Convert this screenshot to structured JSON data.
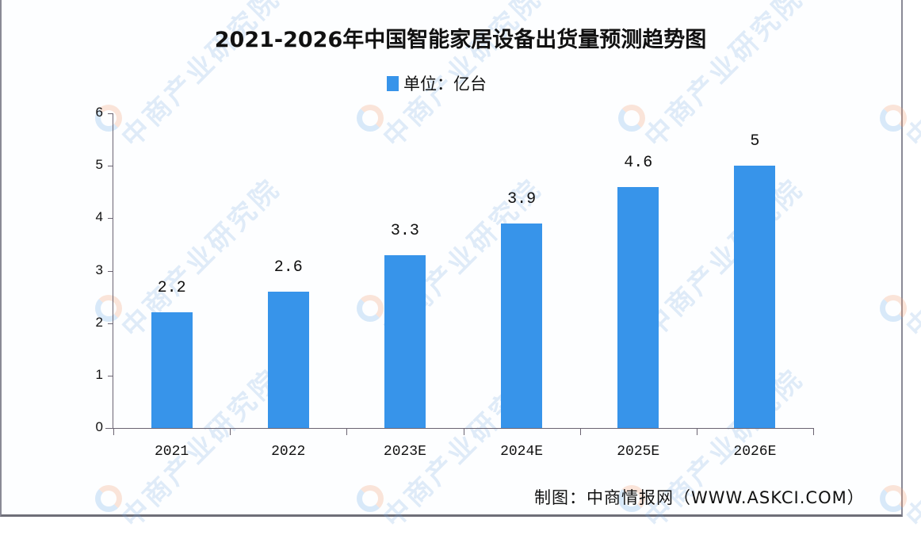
{
  "chart_data": {
    "type": "bar",
    "title": "2021-2026年中国智能家居设备出货量预测趋势图",
    "legend": [
      {
        "name": "单位：亿台",
        "color": "#3794ea"
      }
    ],
    "categories": [
      "2021",
      "2022",
      "2023E",
      "2024E",
      "2025E",
      "2026E"
    ],
    "values": [
      2.2,
      2.6,
      3.3,
      3.9,
      4.6,
      5
    ],
    "value_labels": [
      "2.2",
      "2.6",
      "3.3",
      "3.9",
      "4.6",
      "5"
    ],
    "xlabel": "",
    "ylabel": "",
    "ylim": [
      0,
      6
    ],
    "yticks": [
      "0",
      "1",
      "2",
      "3",
      "4",
      "5",
      "6"
    ],
    "grid": false,
    "legend_position": "top-center",
    "bar_color": "#3794ea"
  },
  "title": "2021-2026年中国智能家居设备出货量预测趋势图",
  "legend_label": "单位：亿台",
  "source": "制图：中商情报网（WWW.ASKCI.COM）",
  "watermark": "中商产业研究院"
}
